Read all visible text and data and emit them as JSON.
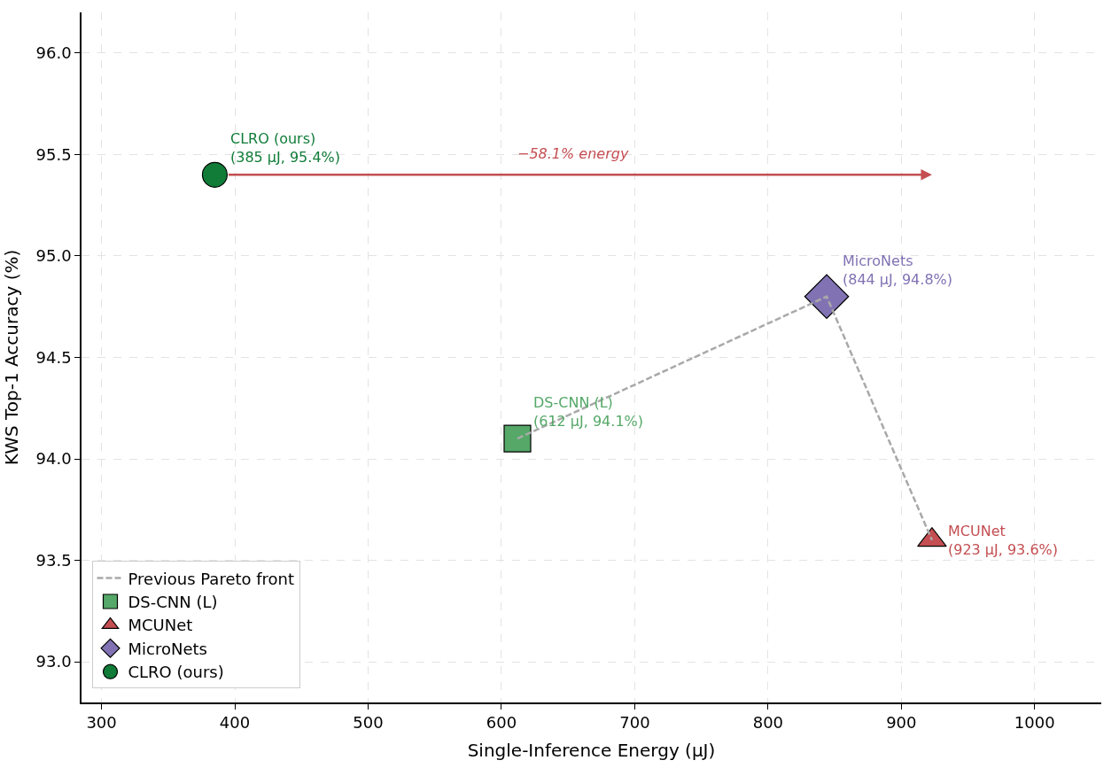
{
  "chart_data": {
    "type": "scatter",
    "xlabel": "Single-Inference Energy (μJ)",
    "ylabel": "KWS Top-1 Accuracy (%)",
    "xlim": [
      285,
      1050
    ],
    "xticks": [
      300,
      400,
      500,
      600,
      700,
      800,
      900,
      1000
    ],
    "ylim": [
      92.8,
      96.2
    ],
    "yticks": [
      {
        "value": 93,
        "label": "93.0"
      },
      {
        "value": 93.5,
        "label": "93.5"
      },
      {
        "value": 94,
        "label": "94.0"
      },
      {
        "value": 94.5,
        "label": "94.5"
      },
      {
        "value": 95,
        "label": "95.0"
      },
      {
        "value": 95.5,
        "label": "95.5"
      },
      {
        "value": 96,
        "label": "96.0"
      }
    ],
    "grid": true,
    "legend": "bottom left",
    "series": [
      {
        "name": "Previous Pareto front",
        "type": "line",
        "color": "#a9a9a9",
        "line_style": "dashed",
        "marker": "none",
        "x": [
          612,
          844,
          923
        ],
        "values": [
          94.1,
          94.8,
          93.6
        ]
      },
      {
        "name": "DS-CNN (L)",
        "color": "#55a868",
        "marker": "square",
        "x": [
          612
        ],
        "values": [
          94.1
        ]
      },
      {
        "name": "MCUNet",
        "color": "#c44e52",
        "marker": "triangle",
        "x": [
          923
        ],
        "values": [
          93.6
        ]
      },
      {
        "name": "MicroNets",
        "color": "#8172b3",
        "marker": "diamond",
        "x": [
          844
        ],
        "values": [
          94.8
        ]
      },
      {
        "name": "CLRO (ours)",
        "color": "#107c38",
        "marker": "circle",
        "x": [
          385
        ],
        "values": [
          95.4
        ]
      }
    ],
    "annotations": [
      {
        "text": "CLRO (ours)\n(385 μJ, 95.4%)",
        "x": 385,
        "y": 95.4
      },
      {
        "text": "MicroNets\n(844 μJ, 94.8%)",
        "x": 844,
        "y": 94.8
      },
      {
        "text": "DS-CNN (L)\n(612 μJ, 94.1%)",
        "x": 612,
        "y": 94.1
      },
      {
        "text": "MCUNet\n(923 μJ, 93.6%)",
        "x": 923,
        "y": 93.6
      },
      "−58.1% energy"
    ]
  }
}
